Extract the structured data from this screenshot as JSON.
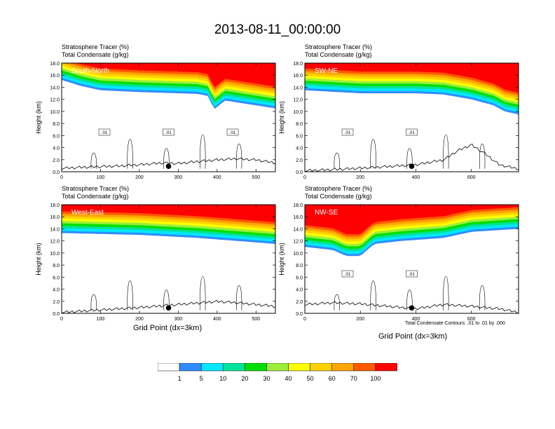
{
  "title": "2013-08-11_00:00:00",
  "panel_header": {
    "line1": "Stratosphere Tracer   (%)",
    "line2": "Total Condensate   (g/kg)"
  },
  "y_label": "Height (km)",
  "x_label": "Grid Point (dx=3km)",
  "contour_note": "Total Condensate Contours: .01 to .01 by .000",
  "colors": {
    "levels": [
      "#ffffff",
      "#2f8cff",
      "#00e8ff",
      "#00e39a",
      "#00e000",
      "#9bef3a",
      "#ffff00",
      "#ffd200",
      "#ffa500",
      "#ff5a00",
      "#ff0000"
    ],
    "outline": "#000000",
    "panel_label": "#ffffff"
  },
  "colorbar": {
    "labels": [
      "1",
      "5",
      "10",
      "20",
      "30",
      "40",
      "50",
      "60",
      "70",
      "100"
    ]
  },
  "chart_data": [
    {
      "type": "contour",
      "name": "South-North",
      "xlim": [
        0,
        550
      ],
      "ylim": [
        0,
        18
      ],
      "x_ticks": [
        "0",
        "100",
        "200",
        "300",
        "400",
        "500"
      ],
      "y_ticks": [
        "0.0",
        "2.0",
        "4.0",
        "6.0",
        "8.0",
        "10.0",
        "12.0",
        "14.0",
        "16.0",
        "18.0"
      ],
      "tracer_base_km": [
        [
          0,
          15.2
        ],
        [
          50,
          14.2
        ],
        [
          100,
          13.5
        ],
        [
          200,
          13.2
        ],
        [
          300,
          13.0
        ],
        [
          350,
          12.9
        ],
        [
          380,
          12.5
        ],
        [
          390,
          10.2
        ],
        [
          420,
          11.8
        ],
        [
          500,
          11.0
        ],
        [
          550,
          10.5
        ]
      ],
      "terrain_km": [
        [
          0,
          0.6
        ],
        [
          60,
          0.8
        ],
        [
          150,
          1.0
        ],
        [
          200,
          1.2
        ],
        [
          260,
          1.5
        ],
        [
          300,
          1.4
        ],
        [
          360,
          1.8
        ],
        [
          400,
          2.0
        ],
        [
          450,
          2.2
        ],
        [
          500,
          2.0
        ],
        [
          550,
          1.5
        ]
      ],
      "contour_labels": [
        ".01",
        ".01",
        ".01"
      ],
      "marker_x": 275
    },
    {
      "type": "contour",
      "name": "SW-NE",
      "xlim": [
        0,
        770
      ],
      "ylim": [
        0,
        18
      ],
      "x_ticks": [
        "0",
        "200",
        "400",
        "600"
      ],
      "y_ticks": [
        "0.0",
        "2.0",
        "4.0",
        "6.0",
        "8.0",
        "10.0",
        "12.0",
        "14.0",
        "16.0",
        "18.0"
      ],
      "tracer_base_km": [
        [
          0,
          13.5
        ],
        [
          200,
          13.0
        ],
        [
          400,
          13.0
        ],
        [
          500,
          12.8
        ],
        [
          600,
          12.0
        ],
        [
          680,
          11.0
        ],
        [
          720,
          10.0
        ],
        [
          770,
          9.5
        ]
      ],
      "terrain_km": [
        [
          0,
          0.2
        ],
        [
          150,
          0.5
        ],
        [
          300,
          0.9
        ],
        [
          400,
          1.2
        ],
        [
          500,
          2.0
        ],
        [
          550,
          3.5
        ],
        [
          600,
          4.5
        ],
        [
          650,
          3.0
        ],
        [
          700,
          1.2
        ],
        [
          770,
          0.5
        ]
      ],
      "contour_labels": [
        ".01",
        ".01"
      ],
      "marker_x": 385
    },
    {
      "type": "contour",
      "name": "West-East",
      "xlim": [
        0,
        550
      ],
      "ylim": [
        0,
        18
      ],
      "x_ticks": [
        "0",
        "100",
        "200",
        "300",
        "400",
        "500"
      ],
      "y_ticks": [
        "0.0",
        "2.0",
        "4.0",
        "6.0",
        "8.0",
        "10.0",
        "12.0",
        "14.0",
        "16.0",
        "18.0"
      ],
      "tracer_base_km": [
        [
          0,
          13.3
        ],
        [
          200,
          13.0
        ],
        [
          350,
          12.5
        ],
        [
          450,
          12.0
        ],
        [
          550,
          11.5
        ]
      ],
      "terrain_km": [
        [
          0,
          0.2
        ],
        [
          100,
          0.6
        ],
        [
          200,
          1.0
        ],
        [
          300,
          1.5
        ],
        [
          400,
          2.0
        ],
        [
          450,
          1.8
        ],
        [
          550,
          1.2
        ]
      ],
      "contour_labels": [],
      "marker_x": 275
    },
    {
      "type": "contour",
      "name": "NW-SE",
      "xlim": [
        0,
        770
      ],
      "ylim": [
        0,
        18
      ],
      "x_ticks": [
        "0",
        "200",
        "400",
        "600"
      ],
      "y_ticks": [
        "0.0",
        "2.0",
        "4.0",
        "6.0",
        "8.0",
        "10.0",
        "12.0",
        "14.0",
        "16.0",
        "18.0"
      ],
      "tracer_base_km": [
        [
          0,
          11.0
        ],
        [
          100,
          10.5
        ],
        [
          150,
          9.5
        ],
        [
          200,
          9.5
        ],
        [
          250,
          11.5
        ],
        [
          350,
          12.0
        ],
        [
          500,
          12.5
        ],
        [
          600,
          13.5
        ],
        [
          770,
          14.0
        ]
      ],
      "terrain_km": [
        [
          0,
          1.5
        ],
        [
          100,
          1.8
        ],
        [
          200,
          1.6
        ],
        [
          300,
          1.2
        ],
        [
          400,
          0.8
        ],
        [
          500,
          1.5
        ],
        [
          600,
          1.2
        ],
        [
          700,
          0.8
        ],
        [
          770,
          0.2
        ]
      ],
      "contour_labels": [
        ".01",
        ".01"
      ],
      "marker_x": 385
    }
  ]
}
